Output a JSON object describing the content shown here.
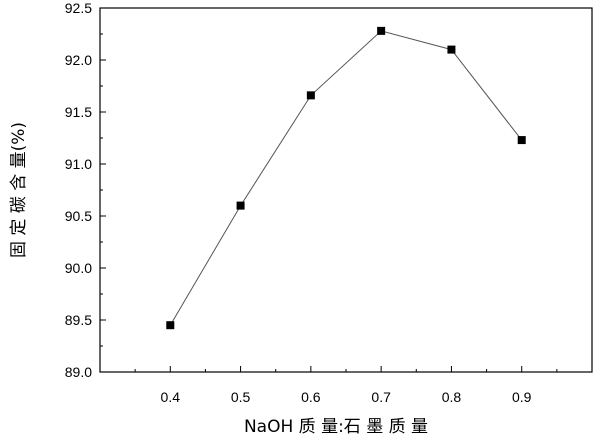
{
  "chart_data": {
    "type": "line",
    "title": "",
    "xlabel": "NaOH 质 量:石 墨 质 量",
    "ylabel": "固 定 碳 含 量(%)",
    "x": [
      0.4,
      0.5,
      0.6,
      0.7,
      0.8,
      0.9
    ],
    "series": [
      {
        "values": [
          89.45,
          90.6,
          91.66,
          92.28,
          92.1,
          91.23
        ]
      }
    ],
    "xlim": [
      0.3,
      1.0
    ],
    "ylim": [
      89.0,
      92.5
    ],
    "xticks": [
      "0.4",
      "0.5",
      "0.6",
      "0.7",
      "0.8",
      "0.9"
    ],
    "yticks": [
      "89.0",
      "89.5",
      "90.0",
      "90.5",
      "91.0",
      "91.5",
      "92.0",
      "92.5"
    ],
    "marker": "filled-square",
    "line_color": "#555555",
    "marker_color": "#000000",
    "grid": false,
    "legend": "none"
  }
}
